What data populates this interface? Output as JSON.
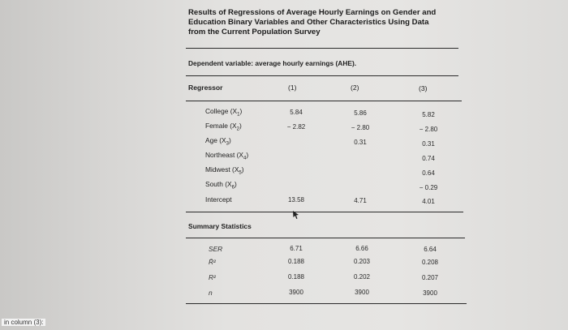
{
  "title": {
    "line1": "Results of Regressions of Average Hourly Earnings on Gender and",
    "line2": "Education Binary Variables and Other Characteristics Using Data",
    "line3": "from the Current Population Survey"
  },
  "dependent_variable": "Dependent variable: average hourly earnings (AHE).",
  "header": {
    "regressor": "Regressor",
    "col1": "(1)",
    "col2": "(2)",
    "col3": "(3)"
  },
  "regressors": [
    {
      "name": "College (X",
      "sub": "1",
      "close": ")",
      "c1": "5.84",
      "c2": "5.86",
      "c3": "5.82"
    },
    {
      "name": "Female (X",
      "sub": "2",
      "close": ")",
      "c1": "− 2.82",
      "c2": "− 2.80",
      "c3": "− 2.80"
    },
    {
      "name": "Age (X",
      "sub": "3",
      "close": ")",
      "c1": "",
      "c2": "0.31",
      "c3": "0.31"
    },
    {
      "name": "Northeast (X",
      "sub": "4",
      "close": ")",
      "c1": "",
      "c2": "",
      "c3": "0.74"
    },
    {
      "name": "Midwest (X",
      "sub": "5",
      "close": ")",
      "c1": "",
      "c2": "",
      "c3": "0.64"
    },
    {
      "name": "South (X",
      "sub": "6",
      "close": ")",
      "c1": "",
      "c2": "",
      "c3": "− 0.29"
    },
    {
      "name": "Intercept",
      "sub": "",
      "close": "",
      "c1": "13.58",
      "c2": "4.71",
      "c3": "4.01"
    }
  ],
  "summary_title": "Summary Statistics",
  "summary": [
    {
      "name": "SER",
      "c1": "6.71",
      "c2": "6.66",
      "c3": "6.64"
    },
    {
      "name": "R̄²",
      "c1": "0.188",
      "c2": "0.203",
      "c3": "0.208"
    },
    {
      "name": "R²",
      "c1": "0.188",
      "c2": "0.202",
      "c3": "0.207"
    },
    {
      "name": "n",
      "c1": "3900",
      "c2": "3900",
      "c3": "3900"
    }
  ],
  "caption": "in column (3):"
}
